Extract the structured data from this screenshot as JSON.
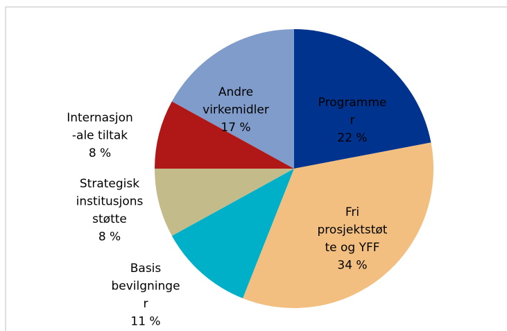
{
  "chart_data": {
    "type": "pie",
    "categories": [
      [
        "Programme",
        "r"
      ],
      [
        "Fri",
        "prosjektstøt",
        "te og YFF"
      ],
      [
        "Basis",
        "bevilgninge",
        "r"
      ],
      [
        "Strategisk",
        "institusjons",
        "støtte"
      ],
      [
        "Internasjon",
        "-ale tiltak"
      ],
      [
        "Andre",
        "virkemidler"
      ]
    ],
    "values": [
      22,
      34,
      11,
      8,
      8,
      17
    ],
    "value_labels": [
      "22 %",
      "34 %",
      "11 %",
      "8 %",
      "8 %",
      "17 %"
    ],
    "colors": [
      "#00338d",
      "#f2bf80",
      "#00afc8",
      "#c4bb8a",
      "#b01818",
      "#7f9ccb"
    ]
  }
}
